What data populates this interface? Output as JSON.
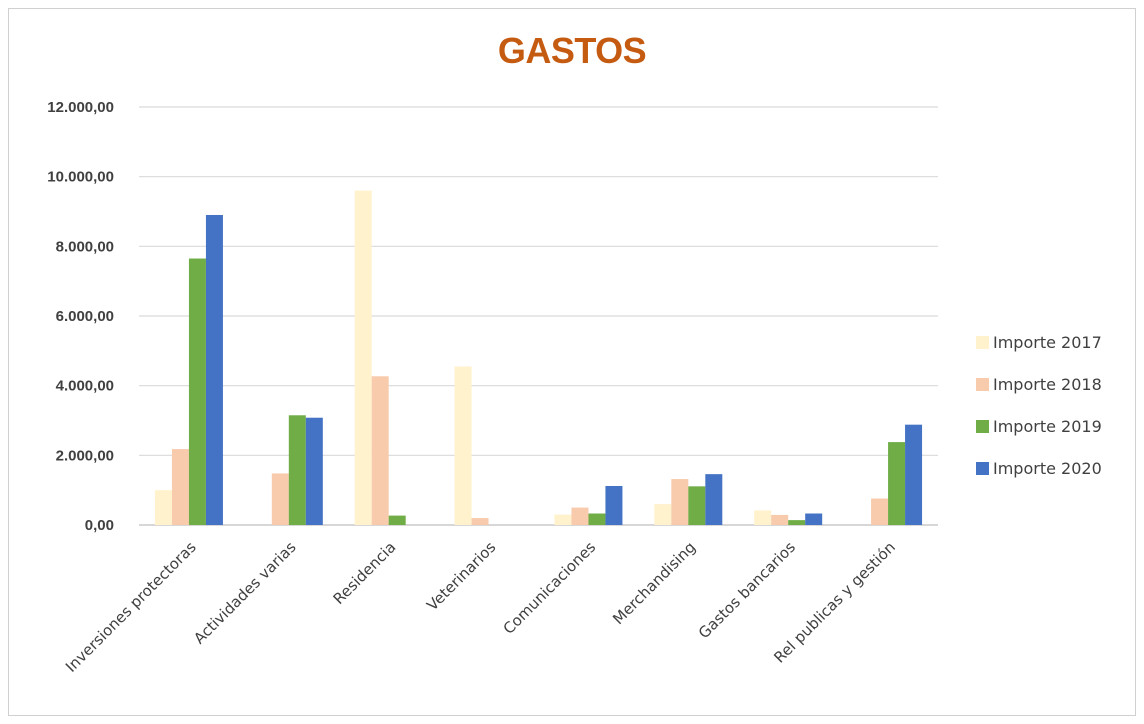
{
  "chart_data": {
    "type": "bar",
    "title": "GASTOS",
    "title_color": "#c55a11",
    "xlabel": "",
    "ylabel": "",
    "ylim": [
      0,
      12000
    ],
    "yticks": [
      0,
      2000,
      4000,
      6000,
      8000,
      10000,
      12000
    ],
    "ytick_labels": [
      "0,00",
      "2.000,00",
      "4.000,00",
      "6.000,00",
      "8.000,00",
      "10.000,00",
      "12.000,00"
    ],
    "grid": true,
    "legend_position": "right",
    "categories": [
      "Inversiones protectoras",
      "Actividades varias",
      "Residencia",
      "Veterinarios",
      "Comunicaciones",
      "Merchandising",
      "Gastos bancarios",
      "Rel publicas y gestión"
    ],
    "series": [
      {
        "name": "Importe 2017",
        "color": "#fff2cc",
        "values": [
          1000,
          0,
          9600,
          4550,
          300,
          600,
          420,
          0
        ]
      },
      {
        "name": "Importe 2018",
        "color": "#f8cbad",
        "values": [
          2180,
          1480,
          4270,
          200,
          500,
          1320,
          290,
          760
        ]
      },
      {
        "name": "Importe 2019",
        "color": "#70ad47",
        "values": [
          7650,
          3150,
          270,
          0,
          330,
          1110,
          140,
          2380
        ]
      },
      {
        "name": "Importe 2020",
        "color": "#4472c4",
        "values": [
          8900,
          3080,
          0,
          0,
          1120,
          1460,
          330,
          2880
        ]
      }
    ]
  }
}
